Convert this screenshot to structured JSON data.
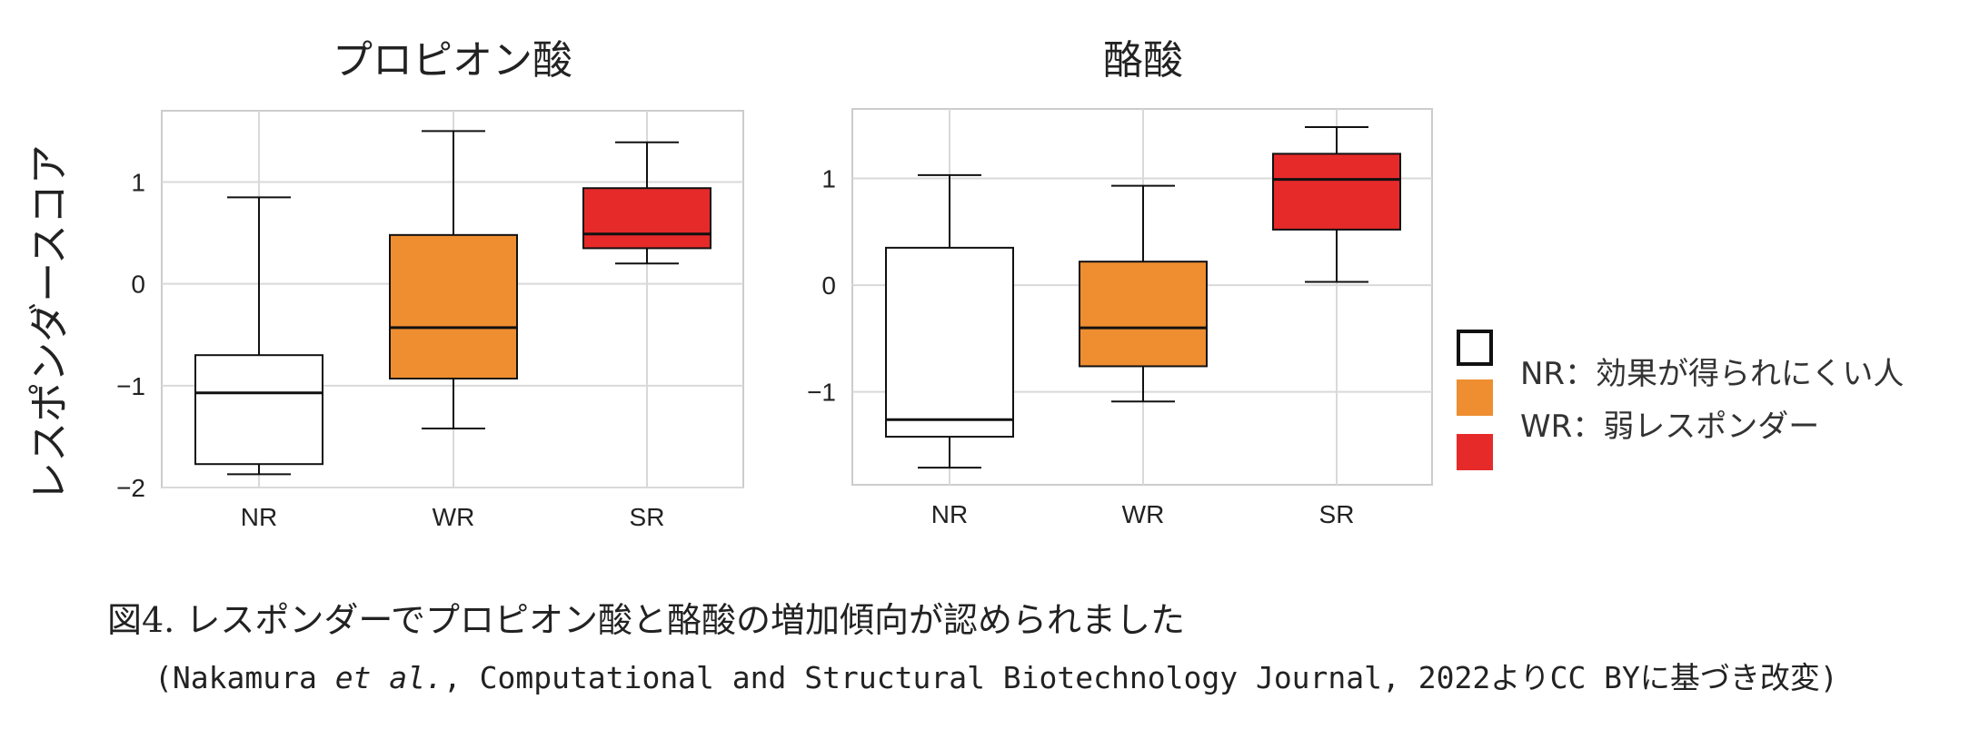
{
  "ylabel": "レスポンダースコア",
  "chart_data": [
    {
      "type": "box",
      "title": "プロピオン酸",
      "categories": [
        "NR",
        "WR",
        "SR"
      ],
      "ylim": [
        -2,
        1.7
      ],
      "yticks": [
        1,
        0,
        -1,
        -2
      ],
      "ytick_labels": [
        "1",
        "0",
        "−1",
        "−2"
      ],
      "grid": true,
      "series": [
        {
          "category": "NR",
          "color": "#ffffff",
          "whisker_low": -1.87,
          "q1": -1.77,
          "median": -1.07,
          "q3": -0.7,
          "whisker_high": 0.85
        },
        {
          "category": "WR",
          "color": "#ee8e30",
          "whisker_low": -1.42,
          "q1": -0.93,
          "median": -0.43,
          "q3": 0.48,
          "whisker_high": 1.5
        },
        {
          "category": "SR",
          "color": "#e62a2a",
          "whisker_low": 0.2,
          "q1": 0.35,
          "median": 0.49,
          "q3": 0.94,
          "whisker_high": 1.39
        }
      ]
    },
    {
      "type": "box",
      "title": "酪酸",
      "categories": [
        "NR",
        "WR",
        "SR"
      ],
      "ylim": [
        -1.87,
        1.65
      ],
      "yticks": [
        1,
        0,
        -1
      ],
      "ytick_labels": [
        "1",
        "0",
        "−1"
      ],
      "grid": true,
      "series": [
        {
          "category": "NR",
          "color": "#ffffff",
          "whisker_low": -1.71,
          "q1": -1.42,
          "median": -1.26,
          "q3": 0.35,
          "whisker_high": 1.03
        },
        {
          "category": "WR",
          "color": "#ee8e30",
          "whisker_low": -1.09,
          "q1": -0.76,
          "median": -0.4,
          "q3": 0.22,
          "whisker_high": 0.93
        },
        {
          "category": "SR",
          "color": "#e62a2a",
          "whisker_low": 0.03,
          "q1": 0.52,
          "median": 0.99,
          "q3": 1.23,
          "whisker_high": 1.48
        }
      ]
    }
  ],
  "legend": [
    {
      "color": "#ffffff",
      "border": "#111111",
      "label": "NR：効果が得られにくい人"
    },
    {
      "color": "#ee8e30",
      "border": "#ee8e30",
      "label": "WR：弱レスポンダー"
    },
    {
      "color": "#e62a2a",
      "border": "#e62a2a",
      "label": ""
    }
  ],
  "caption": "図4. レスポンダーでプロピオン酸と酪酸の増加傾向が認められました",
  "source": {
    "prefix": "(Nakamura ",
    "italic": "et al.",
    "suffix": ", Computational and Structural Biotechnology Journal, 2022よりCC BYに基づき改変)"
  }
}
